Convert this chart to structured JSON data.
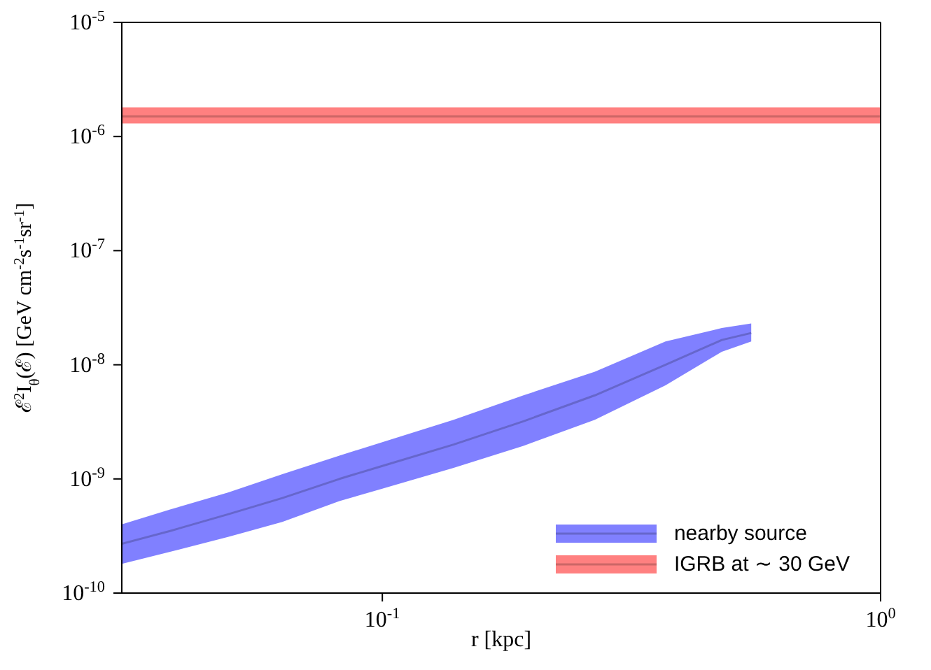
{
  "chart_data": {
    "type": "line",
    "marker": "none",
    "xlabel": "r [kpc]",
    "ylabel": "ℰ$^{2}$I$_{θ}$(ℰ) [GeV cm$^{-2}$s$^{-1}$sr$^{-1}$]",
    "log": "xy",
    "xlim": [
      0.03,
      1
    ],
    "ylim": [
      1e-10,
      1e-05
    ],
    "xticks": [
      {
        "value": 0.1,
        "label": "10$^{-1}$"
      },
      {
        "value": 1,
        "label": "10$^{0}$"
      }
    ],
    "yticks": [
      {
        "value": 1e-10,
        "label": "10$^{-10}$"
      },
      {
        "value": 1e-09,
        "label": "10$^{-9}$"
      },
      {
        "value": 1e-08,
        "label": "10$^{-8}$"
      },
      {
        "value": 1e-07,
        "label": "10$^{-7}$"
      },
      {
        "value": 1e-06,
        "label": "10$^{-6}$"
      },
      {
        "value": 1e-05,
        "label": "10$^{-5}$"
      }
    ],
    "grid": false,
    "legend": "bottom right",
    "series": [
      {
        "name": "nearby source",
        "color": "#6666cc",
        "x": [
          0.03,
          0.0375,
          0.049,
          0.063,
          0.082,
          0.1,
          0.139,
          0.192,
          0.267,
          0.37,
          0.48,
          0.55
        ],
        "values": [
          2.7e-10,
          3.5e-10,
          4.9e-10,
          6.8e-10,
          1e-09,
          1.3e-09,
          2e-09,
          3.2e-09,
          5.4e-09,
          1e-08,
          1.65e-08,
          1.9e-08
        ],
        "lower": [
          1.8e-10,
          2.3e-10,
          3.1e-10,
          4.2e-10,
          6.4e-10,
          8.2e-10,
          1.25e-09,
          1.95e-09,
          3.3e-09,
          6.6e-09,
          1.3e-08,
          1.6e-08
        ],
        "upper": [
          4e-10,
          5.4e-10,
          7.6e-10,
          1.1e-09,
          1.6e-09,
          2.1e-09,
          3.3e-09,
          5.4e-09,
          8.7e-09,
          1.6e-08,
          2.1e-08,
          2.3e-08
        ]
      },
      {
        "name": "IGRB at ∼ 30 GeV",
        "color": "#cc6666",
        "x": [
          0.03,
          1
        ],
        "values": [
          1.5e-06,
          1.5e-06
        ],
        "lower": [
          1.3e-06,
          1.3e-06
        ],
        "upper": [
          1.8e-06,
          1.8e-06
        ]
      }
    ]
  }
}
